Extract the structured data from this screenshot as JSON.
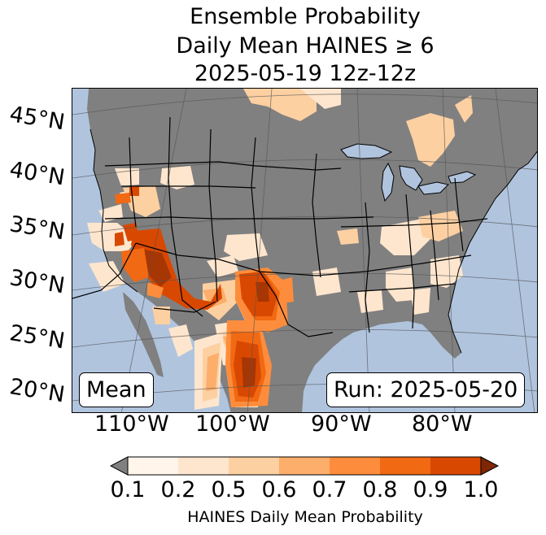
{
  "title": {
    "line1": "Ensemble Probability",
    "line2": "Daily Mean HAINES ≥ 6",
    "line3": "2025-05-19 12z-12z"
  },
  "map": {
    "background_ocean": "#b0c4de",
    "land_below": "#808080",
    "lat_labels": [
      "45°N",
      "40°N",
      "35°N",
      "30°N",
      "25°N",
      "20°N"
    ],
    "lon_labels": [
      "110°W",
      "100°W",
      "90°W",
      "80°W"
    ]
  },
  "badges": {
    "mean": "Mean",
    "run": "Run: 2025-05-20"
  },
  "colorbar": {
    "ticks": [
      "0.1",
      "0.2",
      "0.5",
      "0.6",
      "0.7",
      "0.8",
      "0.9",
      "1.0"
    ],
    "colors": [
      "#fff5eb",
      "#fee6ce",
      "#fdd0a2",
      "#fdae6b",
      "#fd8d3c",
      "#f16913",
      "#d94801",
      "#a63603"
    ],
    "under_color": "#808080",
    "over_color": "#7f2704",
    "label": "HAINES Daily Mean Probability"
  }
}
